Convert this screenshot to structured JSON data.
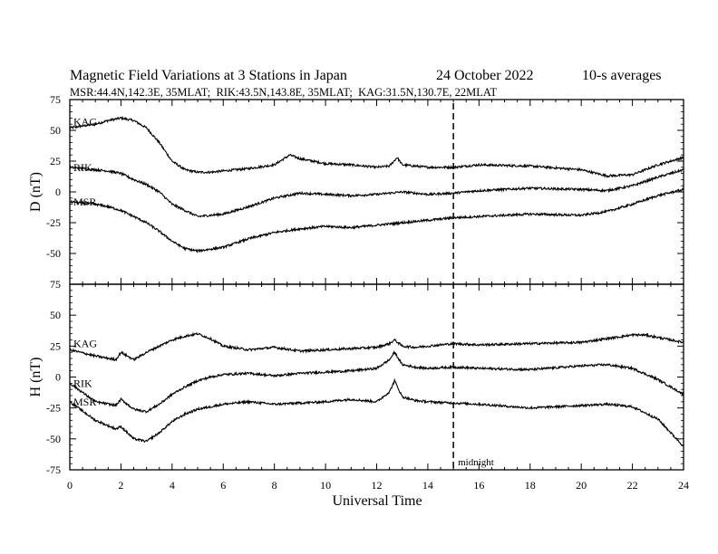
{
  "chart_data": {
    "type": "line",
    "title": "Magnetic Field Variations at 3 Stations in Japan",
    "date": "24 October 2022",
    "averaging": "10-s averages",
    "stations_line": "MSR:44.4N,142.3E, 35MLAT;  RIK:43.5N,143.8E, 35MLAT;  KAG:31.5N,130.7E, 22MLAT",
    "xlabel": "Universal Time",
    "x_ticks": [
      "0",
      "2",
      "4",
      "6",
      "8",
      "10",
      "12",
      "14",
      "16",
      "18",
      "20",
      "22",
      "24"
    ],
    "xlim": [
      0,
      24
    ],
    "marker": {
      "x": 15,
      "label": "midnight",
      "style": "dashed"
    },
    "panels": [
      {
        "component": "D",
        "ylabel": "D (nT)",
        "ylim": [
          -75,
          75
        ],
        "y_ticks": [
          "75",
          "50",
          "25",
          "0",
          "-25",
          "-50",
          "-75"
        ],
        "series": [
          {
            "name": "KAG",
            "x": [
              0,
              1,
              1.5,
              2,
              2.5,
              3,
              3.5,
              4,
              4.5,
              5,
              5.5,
              6,
              7,
              8,
              8.6,
              9,
              10,
              11,
              12,
              12.5,
              12.8,
              13,
              14,
              15,
              16,
              18,
              20,
              21,
              22,
              23,
              24
            ],
            "y": [
              52,
              55,
              58,
              60,
              58,
              52,
              40,
              25,
              18,
              16,
              16,
              17,
              19,
              22,
              30,
              27,
              23,
              22,
              20,
              21,
              28,
              22,
              20,
              20,
              22,
              21,
              18,
              13,
              14,
              22,
              28
            ]
          },
          {
            "name": "RIK",
            "x": [
              0,
              1,
              1.5,
              2,
              2.5,
              3,
              3.5,
              4,
              4.5,
              5,
              6,
              7,
              8,
              9,
              10,
              11,
              12,
              12.5,
              13,
              14,
              15,
              16,
              18,
              20,
              21,
              22,
              23,
              24
            ],
            "y": [
              20,
              18,
              17,
              15,
              10,
              6,
              0,
              -10,
              -15,
              -20,
              -18,
              -12,
              -5,
              -1,
              -2,
              -3,
              -2,
              -1,
              0,
              -2,
              -1,
              1,
              3,
              2,
              1,
              5,
              12,
              18
            ]
          },
          {
            "name": "MSR",
            "x": [
              0,
              1,
              1.5,
              2,
              2.5,
              3,
              3.5,
              4,
              4.5,
              5,
              6,
              7,
              8,
              9,
              10,
              11,
              12,
              12.5,
              13,
              14,
              15,
              16,
              18,
              20,
              21,
              22,
              23,
              24
            ],
            "y": [
              -8,
              -10,
              -12,
              -15,
              -20,
              -25,
              -32,
              -40,
              -46,
              -48,
              -45,
              -38,
              -33,
              -30,
              -28,
              -29,
              -27,
              -26,
              -25,
              -23,
              -21,
              -20,
              -18,
              -19,
              -16,
              -10,
              -3,
              2
            ]
          }
        ]
      },
      {
        "component": "H",
        "ylabel": "H (nT)",
        "ylim": [
          -75,
          75
        ],
        "y_ticks": [
          "75",
          "50",
          "25",
          "0",
          "-25",
          "-50",
          "-75"
        ],
        "series": [
          {
            "name": "KAG",
            "x": [
              0,
              1,
              1.8,
              2,
              2.5,
              3,
              3.5,
              4,
              4.5,
              5,
              5.5,
              6,
              7,
              8,
              9,
              10,
              11,
              12,
              12.5,
              12.7,
              13,
              13.5,
              14,
              15,
              16,
              18,
              20,
              21,
              22,
              22.5,
              23,
              24
            ],
            "y": [
              22,
              17,
              14,
              20,
              14,
              20,
              25,
              30,
              33,
              35,
              31,
              25,
              22,
              24,
              21,
              22,
              23,
              24,
              27,
              30,
              25,
              24,
              25,
              27,
              26,
              27,
              28,
              31,
              34,
              34,
              32,
              28
            ]
          },
          {
            "name": "RIK",
            "x": [
              0,
              1,
              1.8,
              2,
              2.5,
              3,
              3.5,
              4,
              4.5,
              5,
              5.5,
              6,
              7,
              8,
              9,
              10,
              11,
              12,
              12.5,
              12.7,
              13,
              13.5,
              14,
              15,
              16,
              18,
              20,
              21,
              22,
              23,
              24
            ],
            "y": [
              -5,
              -20,
              -23,
              -18,
              -26,
              -28,
              -22,
              -14,
              -8,
              -3,
              0,
              2,
              3,
              1,
              3,
              4,
              5,
              7,
              14,
              20,
              10,
              8,
              7,
              8,
              7,
              6,
              9,
              10,
              7,
              -2,
              -14
            ]
          },
          {
            "name": "MSR",
            "x": [
              0,
              1,
              1.8,
              2,
              2.5,
              3,
              3.5,
              4,
              4.5,
              5,
              5.5,
              6,
              7,
              8,
              9,
              10,
              11,
              12,
              12.5,
              12.7,
              13,
              13.5,
              14,
              15,
              16,
              18,
              20,
              21,
              22,
              23,
              24
            ],
            "y": [
              -20,
              -35,
              -42,
              -40,
              -50,
              -52,
              -45,
              -36,
              -30,
              -26,
              -24,
              -22,
              -20,
              -22,
              -21,
              -20,
              -18,
              -20,
              -12,
              -3,
              -16,
              -19,
              -20,
              -21,
              -22,
              -25,
              -23,
              -22,
              -24,
              -34,
              -56
            ]
          }
        ]
      }
    ]
  }
}
